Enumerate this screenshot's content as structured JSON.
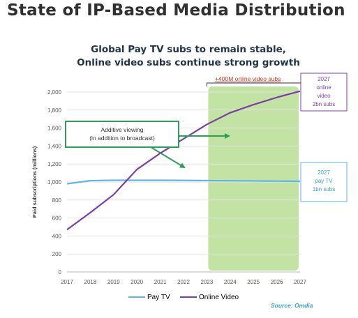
{
  "page": {
    "title": "State of IP-Based Media Distribution"
  },
  "chart_data": {
    "type": "line",
    "title_lines": [
      "Global Pay TV subs to remain stable,",
      "Online video subs continue strong growth"
    ],
    "xlabel": "",
    "ylabel": "Paid subscriptions (millions)",
    "x": [
      "2017",
      "2018",
      "2019",
      "2020",
      "2021",
      "2022",
      "2023",
      "2024",
      "2025",
      "2026",
      "2027"
    ],
    "ylim": [
      0,
      2000
    ],
    "yticks": [
      "0",
      "200",
      "400",
      "600",
      "800",
      "1,000",
      "1,200",
      "1,400",
      "1,600",
      "1,800",
      "2,000"
    ],
    "grid": true,
    "series": [
      {
        "name": "Pay TV",
        "color": "#5fb3e6",
        "values": [
          980,
          1015,
          1020,
          1020,
          1020,
          1018,
          1016,
          1014,
          1012,
          1010,
          1008
        ]
      },
      {
        "name": "Online Video",
        "color": "#7b3fa3",
        "values": [
          470,
          660,
          860,
          1140,
          1320,
          1480,
          1640,
          1770,
          1860,
          1940,
          2010
        ]
      }
    ],
    "forecast_region": {
      "from": "2023",
      "to": "2027",
      "color": "#bde09a",
      "label": "+400M online video subs",
      "label_color": "#c0392b"
    },
    "annotations": [
      {
        "id": "additive",
        "lines": [
          "Additive viewing",
          "(in addition to broadcast)"
        ],
        "border_color": "#2e9e5b"
      },
      {
        "id": "online-2027",
        "lines": [
          "2027",
          "online",
          "video",
          "2bn subs"
        ],
        "text_color": "#7b3fa3",
        "border_color": "#7b3fa3"
      },
      {
        "id": "paytv-2027",
        "lines": [
          "2027",
          "pay TV",
          "1bn subs"
        ],
        "text_color": "#3a9fd0",
        "border_color": "#5fb3e6"
      }
    ],
    "legend": {
      "position": "bottom"
    },
    "source": "Source: Omdia"
  }
}
